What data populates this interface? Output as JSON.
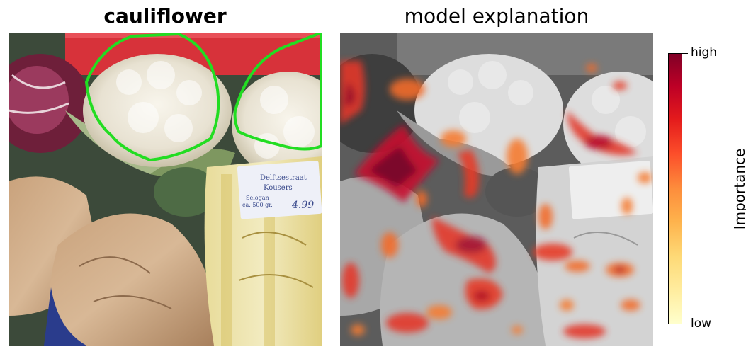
{
  "left_panel": {
    "title": "cauliflower"
  },
  "right_panel": {
    "title": "model explanation"
  },
  "colorbar": {
    "label": "Importance",
    "high": "high",
    "low": "low",
    "colors": [
      "#ffffcc",
      "#ffeda0",
      "#fed976",
      "#feb24c",
      "#fd8d3c",
      "#fc4e2a",
      "#e31a1c",
      "#bd0026",
      "#800026"
    ]
  },
  "package_label": {
    "line1": "Delftsestraat",
    "line2": "Kousers",
    "line3": "Selogan",
    "line4": "ca. 500 gr.",
    "price": "4.99"
  },
  "outline_color": "#22dd22"
}
